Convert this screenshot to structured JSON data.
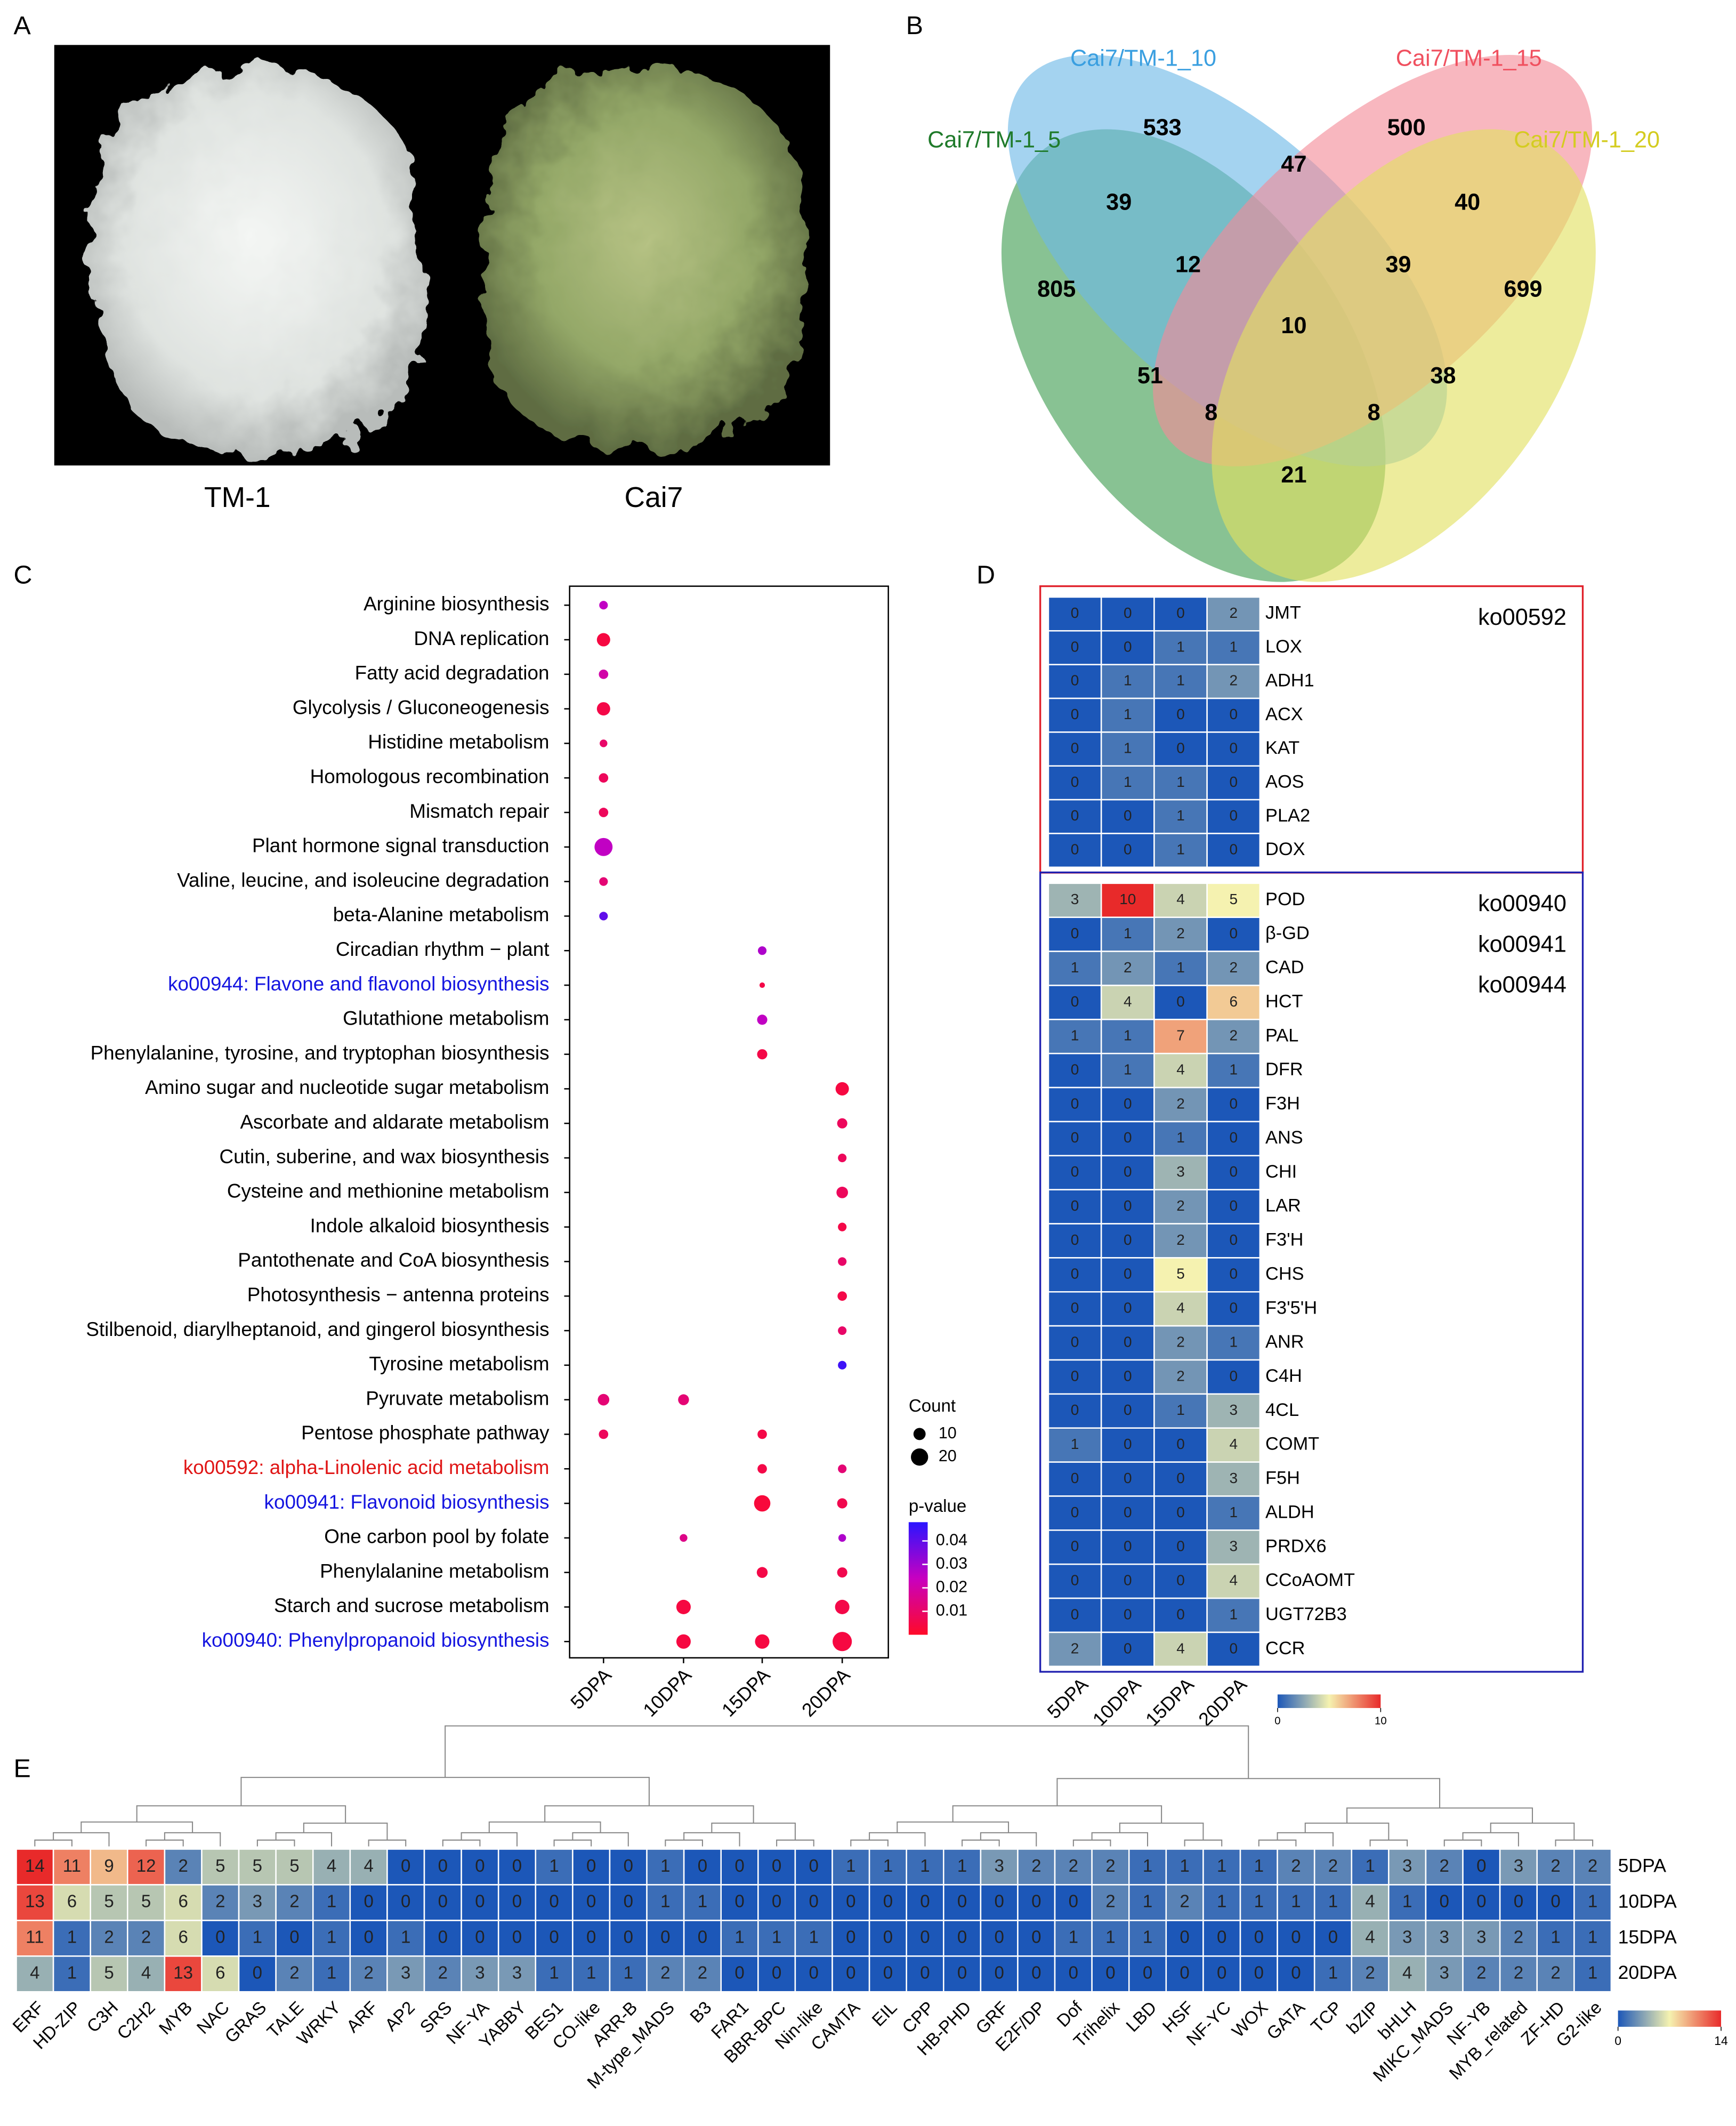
{
  "panel_labels": [
    "A",
    "B",
    "C",
    "D",
    "E"
  ],
  "panel_a": {
    "labels": [
      "TM-1",
      "Cai7"
    ]
  },
  "panel_b": {
    "sets": [
      {
        "name": "Cai7/TM-1_5",
        "color": "#1f7a2a"
      },
      {
        "name": "Cai7/TM-1_10",
        "color": "#3a9fe0"
      },
      {
        "name": "Cai7/TM-1_15",
        "color": "#f0505f"
      },
      {
        "name": "Cai7/TM-1_20",
        "color": "#d4cc20"
      }
    ],
    "fills": [
      "#3f9c50",
      "#6cb8e6",
      "#f48a98",
      "#e2e060"
    ],
    "regions": [
      533,
      500,
      805,
      699,
      39,
      47,
      40,
      12,
      39,
      10,
      51,
      38,
      8,
      8,
      21
    ]
  },
  "panel_c": {
    "x_labels": [
      "5DPA",
      "10DPA",
      "15DPA",
      "20DPA"
    ],
    "pathways": [
      {
        "name": "Arginine biosynthesis",
        "color": "#000000",
        "counts": [
          5,
          null,
          null,
          null
        ],
        "pvalues": [
          0.025,
          null,
          null,
          null
        ]
      },
      {
        "name": "DNA replication",
        "color": "#000000",
        "counts": [
          12,
          null,
          null,
          null
        ],
        "pvalues": [
          0.004,
          null,
          null,
          null
        ]
      },
      {
        "name": "Fatty acid degradation",
        "color": "#000000",
        "counts": [
          6,
          null,
          null,
          null
        ],
        "pvalues": [
          0.02,
          null,
          null,
          null
        ]
      },
      {
        "name": "Glycolysis / Gluconeogenesis",
        "color": "#000000",
        "counts": [
          12,
          null,
          null,
          null
        ],
        "pvalues": [
          0.005,
          null,
          null,
          null
        ]
      },
      {
        "name": "Histidine metabolism",
        "color": "#000000",
        "counts": [
          4,
          null,
          null,
          null
        ],
        "pvalues": [
          0.01,
          null,
          null,
          null
        ]
      },
      {
        "name": "Homologous recombination",
        "color": "#000000",
        "counts": [
          6,
          null,
          null,
          null
        ],
        "pvalues": [
          0.008,
          null,
          null,
          null
        ]
      },
      {
        "name": "Mismatch repair",
        "color": "#000000",
        "counts": [
          6,
          null,
          null,
          null
        ],
        "pvalues": [
          0.008,
          null,
          null,
          null
        ]
      },
      {
        "name": "Plant hormone signal transduction",
        "color": "#000000",
        "counts": [
          22,
          null,
          null,
          null
        ],
        "pvalues": [
          0.025,
          null,
          null,
          null
        ]
      },
      {
        "name": "Valine, leucine, and isoleucine degradation",
        "color": "#000000",
        "counts": [
          5,
          null,
          null,
          null
        ],
        "pvalues": [
          0.012,
          null,
          null,
          null
        ]
      },
      {
        "name": "beta-Alanine metabolism",
        "color": "#000000",
        "counts": [
          5,
          null,
          null,
          null
        ],
        "pvalues": [
          0.04,
          null,
          null,
          null
        ]
      },
      {
        "name": "Circadian rhythm − plant",
        "color": "#000000",
        "counts": [
          null,
          null,
          5,
          null
        ],
        "pvalues": [
          null,
          null,
          0.028,
          null
        ]
      },
      {
        "name": "ko00944: Flavone and flavonol biosynthesis",
        "color": "#1515e0",
        "counts": [
          null,
          null,
          2,
          null
        ],
        "pvalues": [
          null,
          null,
          0.005,
          null
        ]
      },
      {
        "name": "Glutathione metabolism",
        "color": "#000000",
        "counts": [
          null,
          null,
          7,
          null
        ],
        "pvalues": [
          null,
          null,
          0.025,
          null
        ]
      },
      {
        "name": "Phenylalanine, tyrosine, and tryptophan biosynthesis",
        "color": "#000000",
        "counts": [
          null,
          null,
          7,
          null
        ],
        "pvalues": [
          null,
          null,
          0.005,
          null
        ]
      },
      {
        "name": "Amino sugar and nucleotide sugar metabolism",
        "color": "#000000",
        "counts": [
          null,
          null,
          null,
          12
        ],
        "pvalues": [
          null,
          null,
          null,
          0.004
        ]
      },
      {
        "name": "Ascorbate and aldarate metabolism",
        "color": "#000000",
        "counts": [
          null,
          null,
          null,
          7
        ],
        "pvalues": [
          null,
          null,
          null,
          0.008
        ]
      },
      {
        "name": "Cutin, suberine, and wax biosynthesis",
        "color": "#000000",
        "counts": [
          null,
          null,
          null,
          5
        ],
        "pvalues": [
          null,
          null,
          null,
          0.008
        ]
      },
      {
        "name": "Cysteine and methionine metabolism",
        "color": "#000000",
        "counts": [
          null,
          null,
          null,
          9
        ],
        "pvalues": [
          null,
          null,
          null,
          0.008
        ]
      },
      {
        "name": "Indole alkaloid biosynthesis",
        "color": "#000000",
        "counts": [
          null,
          null,
          null,
          5
        ],
        "pvalues": [
          null,
          null,
          null,
          0.005
        ]
      },
      {
        "name": "Pantothenate and CoA biosynthesis",
        "color": "#000000",
        "counts": [
          null,
          null,
          null,
          5
        ],
        "pvalues": [
          null,
          null,
          null,
          0.01
        ]
      },
      {
        "name": "Photosynthesis − antenna proteins",
        "color": "#000000",
        "counts": [
          null,
          null,
          null,
          6
        ],
        "pvalues": [
          null,
          null,
          null,
          0.005
        ]
      },
      {
        "name": "Stilbenoid, diarylheptanoid, and gingerol biosynthesis",
        "color": "#000000",
        "counts": [
          null,
          null,
          null,
          5
        ],
        "pvalues": [
          null,
          null,
          null,
          0.01
        ]
      },
      {
        "name": "Tyrosine metabolism",
        "color": "#000000",
        "counts": [
          null,
          null,
          null,
          5
        ],
        "pvalues": [
          null,
          null,
          null,
          0.045
        ]
      },
      {
        "name": "Pyruvate metabolism",
        "color": "#000000",
        "counts": [
          9,
          8,
          null,
          null
        ],
        "pvalues": [
          0.012,
          0.012,
          null,
          null
        ]
      },
      {
        "name": "Pentose phosphate pathway",
        "color": "#000000",
        "counts": [
          6,
          null,
          6,
          null
        ],
        "pvalues": [
          0.008,
          null,
          0.005,
          null
        ]
      },
      {
        "name": "ko00592: alpha-Linolenic acid metabolism",
        "color": "#e01515",
        "counts": [
          null,
          null,
          6,
          5
        ],
        "pvalues": [
          null,
          null,
          0.005,
          0.012
        ]
      },
      {
        "name": "ko00941: Flavonoid biosynthesis",
        "color": "#1515e0",
        "counts": [
          null,
          null,
          18,
          7
        ],
        "pvalues": [
          null,
          null,
          0.003,
          0.006
        ]
      },
      {
        "name": "One carbon pool by folate",
        "color": "#000000",
        "counts": [
          null,
          4,
          null,
          4
        ],
        "pvalues": [
          null,
          0.015,
          null,
          0.028
        ]
      },
      {
        "name": "Phenylalanine metabolism",
        "color": "#000000",
        "counts": [
          null,
          null,
          8,
          7
        ],
        "pvalues": [
          null,
          null,
          0.005,
          0.006
        ]
      },
      {
        "name": "Starch and sucrose metabolism",
        "color": "#000000",
        "counts": [
          null,
          14,
          null,
          14
        ],
        "pvalues": [
          null,
          0.004,
          null,
          0.005
        ]
      },
      {
        "name": "ko00940: Phenylpropanoid biosynthesis",
        "color": "#1515e0",
        "counts": [
          null,
          14,
          14,
          25
        ],
        "pvalues": [
          null,
          0.004,
          0.004,
          0.004
        ]
      }
    ],
    "size_legend": {
      "title": "Count",
      "values": [
        10,
        20
      ]
    },
    "color_legend": {
      "title": "p-value",
      "ticks": [
        0.04,
        0.03,
        0.02,
        0.01
      ],
      "lim": [
        0,
        0.048
      ],
      "colors": [
        "#ff0a28",
        "#c800c0",
        "#2a14ff"
      ]
    }
  },
  "panel_d": {
    "x_labels": [
      "5DPA",
      "10DPA",
      "15DPA",
      "20DPA"
    ],
    "groups": [
      {
        "labels": [
          "ko00592"
        ],
        "color": "#e0202a",
        "genes": [
          {
            "name": "JMT",
            "values": [
              0,
              0,
              0,
              2
            ]
          },
          {
            "name": "LOX",
            "values": [
              0,
              0,
              1,
              1
            ]
          },
          {
            "name": "ADH1",
            "values": [
              0,
              1,
              1,
              2
            ]
          },
          {
            "name": "ACX",
            "values": [
              0,
              1,
              0,
              0
            ]
          },
          {
            "name": "KAT",
            "values": [
              0,
              1,
              0,
              0
            ]
          },
          {
            "name": "AOS",
            "values": [
              0,
              1,
              1,
              0
            ]
          },
          {
            "name": "PLA2",
            "values": [
              0,
              0,
              1,
              0
            ]
          },
          {
            "name": "DOX",
            "values": [
              0,
              0,
              1,
              0
            ]
          }
        ]
      },
      {
        "labels": [
          "ko00940",
          "ko00941",
          "ko00944"
        ],
        "color": "#2020b0",
        "genes": [
          {
            "name": "POD",
            "values": [
              3,
              10,
              4,
              5
            ]
          },
          {
            "name": "β-GD",
            "values": [
              0,
              1,
              2,
              0
            ]
          },
          {
            "name": "CAD",
            "values": [
              1,
              2,
              1,
              2
            ]
          },
          {
            "name": "HCT",
            "values": [
              0,
              4,
              0,
              6
            ]
          },
          {
            "name": "PAL",
            "values": [
              1,
              1,
              7,
              2
            ]
          },
          {
            "name": "DFR",
            "values": [
              0,
              1,
              4,
              1
            ]
          },
          {
            "name": "F3H",
            "values": [
              0,
              0,
              2,
              0
            ]
          },
          {
            "name": "ANS",
            "values": [
              0,
              0,
              1,
              0
            ]
          },
          {
            "name": "CHI",
            "values": [
              0,
              0,
              3,
              0
            ]
          },
          {
            "name": "LAR",
            "values": [
              0,
              0,
              2,
              0
            ]
          },
          {
            "name": "F3'H",
            "values": [
              0,
              0,
              2,
              0
            ]
          },
          {
            "name": "CHS",
            "values": [
              0,
              0,
              5,
              0
            ]
          },
          {
            "name": "F3'5'H",
            "values": [
              0,
              0,
              4,
              0
            ]
          },
          {
            "name": "ANR",
            "values": [
              0,
              0,
              2,
              1
            ]
          },
          {
            "name": "C4H",
            "values": [
              0,
              0,
              2,
              0
            ]
          },
          {
            "name": "4CL",
            "values": [
              0,
              0,
              1,
              3
            ]
          },
          {
            "name": "COMT",
            "values": [
              1,
              0,
              0,
              4
            ]
          },
          {
            "name": "F5H",
            "values": [
              0,
              0,
              0,
              3
            ]
          },
          {
            "name": "ALDH",
            "values": [
              0,
              0,
              0,
              1
            ]
          },
          {
            "name": "PRDX6",
            "values": [
              0,
              0,
              0,
              3
            ]
          },
          {
            "name": "CCoAOMT",
            "values": [
              0,
              0,
              0,
              4
            ]
          },
          {
            "name": "UGT72B3",
            "values": [
              0,
              0,
              0,
              1
            ]
          },
          {
            "name": "CCR",
            "values": [
              2,
              0,
              4,
              0
            ]
          }
        ]
      }
    ],
    "colorbar": {
      "ticks": [
        0,
        10
      ],
      "colors": [
        "#1c57b8",
        "#f5f2b0",
        "#e82a2a"
      ]
    }
  },
  "panel_e": {
    "families": [
      "ERF",
      "HD-ZIP",
      "C3H",
      "C2H2",
      "MYB",
      "NAC",
      "GRAS",
      "TALE",
      "WRKY",
      "ARF",
      "AP2",
      "SRS",
      "NF-YA",
      "YABBY",
      "BES1",
      "CO-like",
      "ARR-B",
      "M-type_MADS",
      "B3",
      "FAR1",
      "BBR-BPC",
      "Nin-like",
      "CAMTA",
      "EIL",
      "CPP",
      "HB-PHD",
      "GRF",
      "E2F/DP",
      "Dof",
      "Trihelix",
      "LBD",
      "HSF",
      "NF-YC",
      "WOX",
      "GATA",
      "TCP",
      "bZIP",
      "bHLH",
      "MIKC_MADS",
      "NF-YB",
      "MYB_related",
      "ZF-HD",
      "G2-like"
    ],
    "rows": [
      {
        "name": "5DPA",
        "values": [
          14,
          11,
          9,
          12,
          2,
          5,
          5,
          5,
          4,
          4,
          0,
          0,
          0,
          0,
          1,
          0,
          0,
          1,
          0,
          0,
          0,
          0,
          1,
          1,
          1,
          1,
          3,
          2,
          2,
          2,
          1,
          1,
          1,
          1,
          2,
          2,
          1,
          3,
          2,
          0,
          3,
          2,
          2
        ]
      },
      {
        "name": "10DPA",
        "values": [
          13,
          6,
          5,
          5,
          6,
          2,
          3,
          2,
          1,
          0,
          0,
          0,
          0,
          0,
          0,
          0,
          0,
          1,
          1,
          0,
          0,
          0,
          0,
          0,
          0,
          0,
          0,
          0,
          0,
          2,
          1,
          2,
          1,
          1,
          1,
          1,
          4,
          1,
          0,
          0,
          0,
          0,
          1
        ]
      },
      {
        "name": "15DPA",
        "values": [
          11,
          1,
          2,
          2,
          6,
          0,
          1,
          0,
          1,
          0,
          1,
          0,
          0,
          0,
          0,
          0,
          0,
          0,
          0,
          1,
          1,
          1,
          0,
          0,
          0,
          0,
          0,
          0,
          1,
          1,
          1,
          0,
          0,
          0,
          0,
          0,
          4,
          3,
          3,
          3,
          2,
          1,
          1
        ]
      },
      {
        "name": "20DPA",
        "values": [
          4,
          1,
          5,
          4,
          13,
          6,
          0,
          2,
          1,
          2,
          3,
          2,
          3,
          3,
          1,
          1,
          1,
          2,
          2,
          0,
          0,
          0,
          0,
          0,
          0,
          0,
          0,
          0,
          0,
          0,
          0,
          0,
          0,
          0,
          0,
          1,
          2,
          4,
          3,
          2,
          2,
          2,
          1
        ]
      }
    ],
    "colorbar": {
      "ticks": [
        0,
        14
      ],
      "colors": [
        "#1c57b8",
        "#f5f2b0",
        "#e82a2a"
      ]
    }
  }
}
